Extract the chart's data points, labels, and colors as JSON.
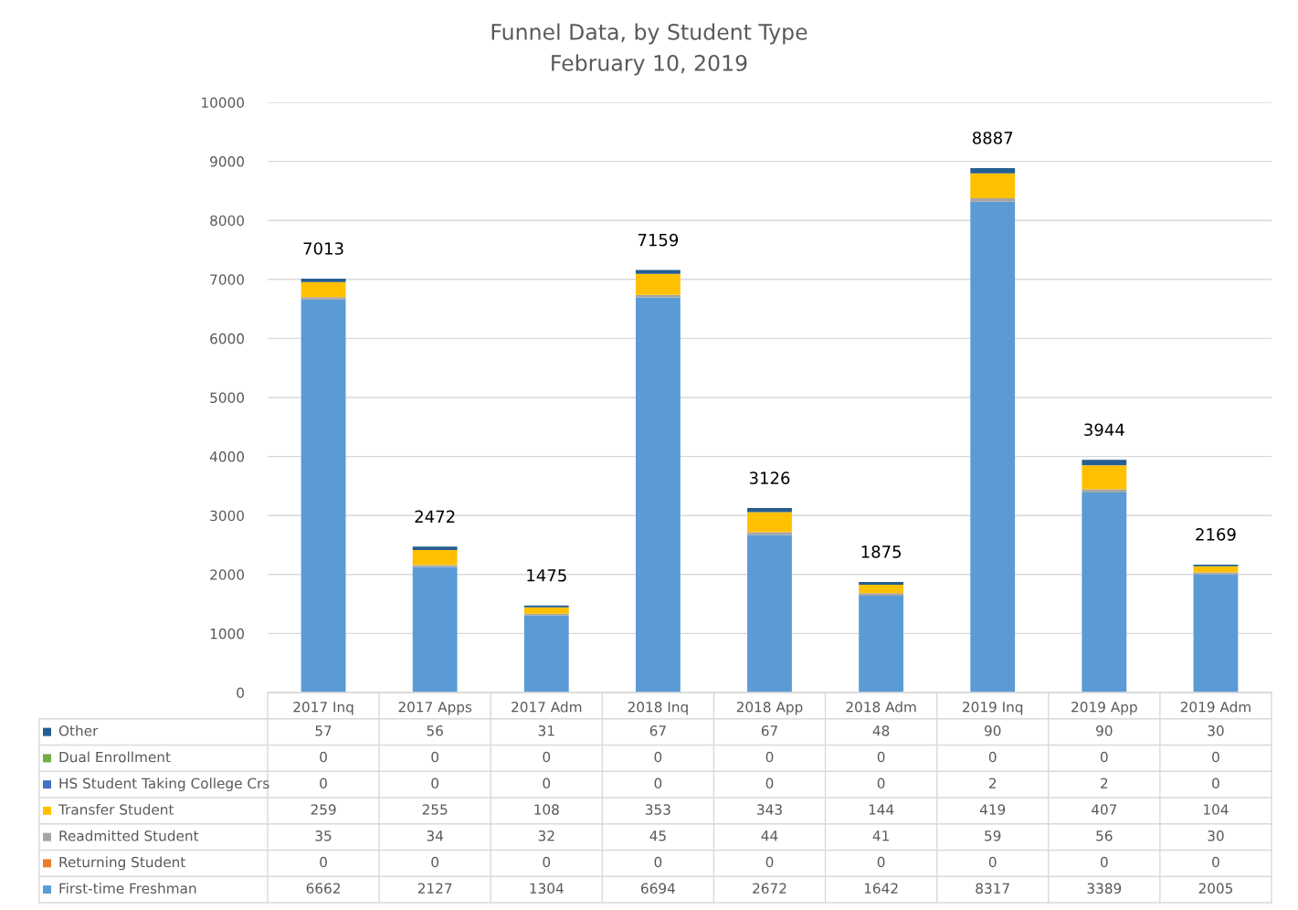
{
  "chart_data": {
    "type": "bar",
    "title": "Funnel Data, by Student Type",
    "subtitle": "February 10, 2019",
    "categories": [
      "2017 Inq",
      "2017 Apps",
      "2017 Adm",
      "2018 Inq",
      "2018 App",
      "2018 Adm",
      "2019 Inq",
      "2019 App",
      "2019 Adm"
    ],
    "stacked": true,
    "ylim": [
      0,
      10000
    ],
    "yticks": [
      0,
      1000,
      2000,
      3000,
      4000,
      5000,
      6000,
      7000,
      8000,
      9000,
      10000
    ],
    "grid": "y",
    "legend": "bottom left",
    "series": [
      {
        "name": "First-time Freshman",
        "color": "#5b9bd5",
        "values": [
          6662,
          2127,
          1304,
          6694,
          2672,
          1642,
          8317,
          3389,
          2005
        ],
        "value_labels": [
          "6662",
          "2127",
          "1304",
          "6694",
          "2672",
          "1642",
          "8317",
          "3389",
          "2005"
        ]
      },
      {
        "name": "Returning Student",
        "color": "#ed7d31",
        "values": [
          0,
          0,
          0,
          0,
          0,
          0,
          0,
          0,
          0
        ],
        "value_labels": [
          "0",
          "0",
          "0",
          "0",
          "0",
          "0",
          "0",
          "0",
          "0"
        ]
      },
      {
        "name": "Readmitted Student",
        "color": "#a5a5a5",
        "values": [
          35,
          34,
          32,
          45,
          44,
          41,
          59,
          56,
          30
        ],
        "value_labels": [
          "35",
          "34",
          "32",
          "45",
          "44",
          "41",
          "59",
          "56",
          "30"
        ]
      },
      {
        "name": "Transfer Student",
        "color": "#ffc000",
        "values": [
          259,
          255,
          108,
          353,
          343,
          144,
          419,
          407,
          104
        ],
        "value_labels": [
          "259",
          "255",
          "108",
          "353",
          "343",
          "144",
          "419",
          "407",
          "104"
        ]
      },
      {
        "name": "HS Student Taking College Crs",
        "color": "#4472c4",
        "values": [
          0,
          0,
          0,
          0,
          0,
          0,
          2,
          2,
          0
        ],
        "value_labels": [
          "0",
          "0",
          "0",
          "0",
          "0",
          "0",
          "2",
          "2",
          "0"
        ]
      },
      {
        "name": "Dual Enrollment",
        "color": "#70ad47",
        "values": [
          0,
          0,
          0,
          0,
          0,
          0,
          0,
          0,
          0
        ],
        "value_labels": [
          "0",
          "0",
          "0",
          "0",
          "0",
          "0",
          "0",
          "0",
          "0"
        ]
      },
      {
        "name": "Other",
        "color": "#255e91",
        "values": [
          57,
          56,
          31,
          67,
          67,
          48,
          90,
          90,
          30
        ],
        "value_labels": [
          "57",
          "56",
          "31",
          "67",
          "67",
          "48",
          "90",
          "90",
          "30"
        ]
      }
    ],
    "totals": [
      "7013",
      "2472",
      "1475",
      "7159",
      "3126",
      "1875",
      "8887",
      "3944",
      "2169"
    ]
  }
}
